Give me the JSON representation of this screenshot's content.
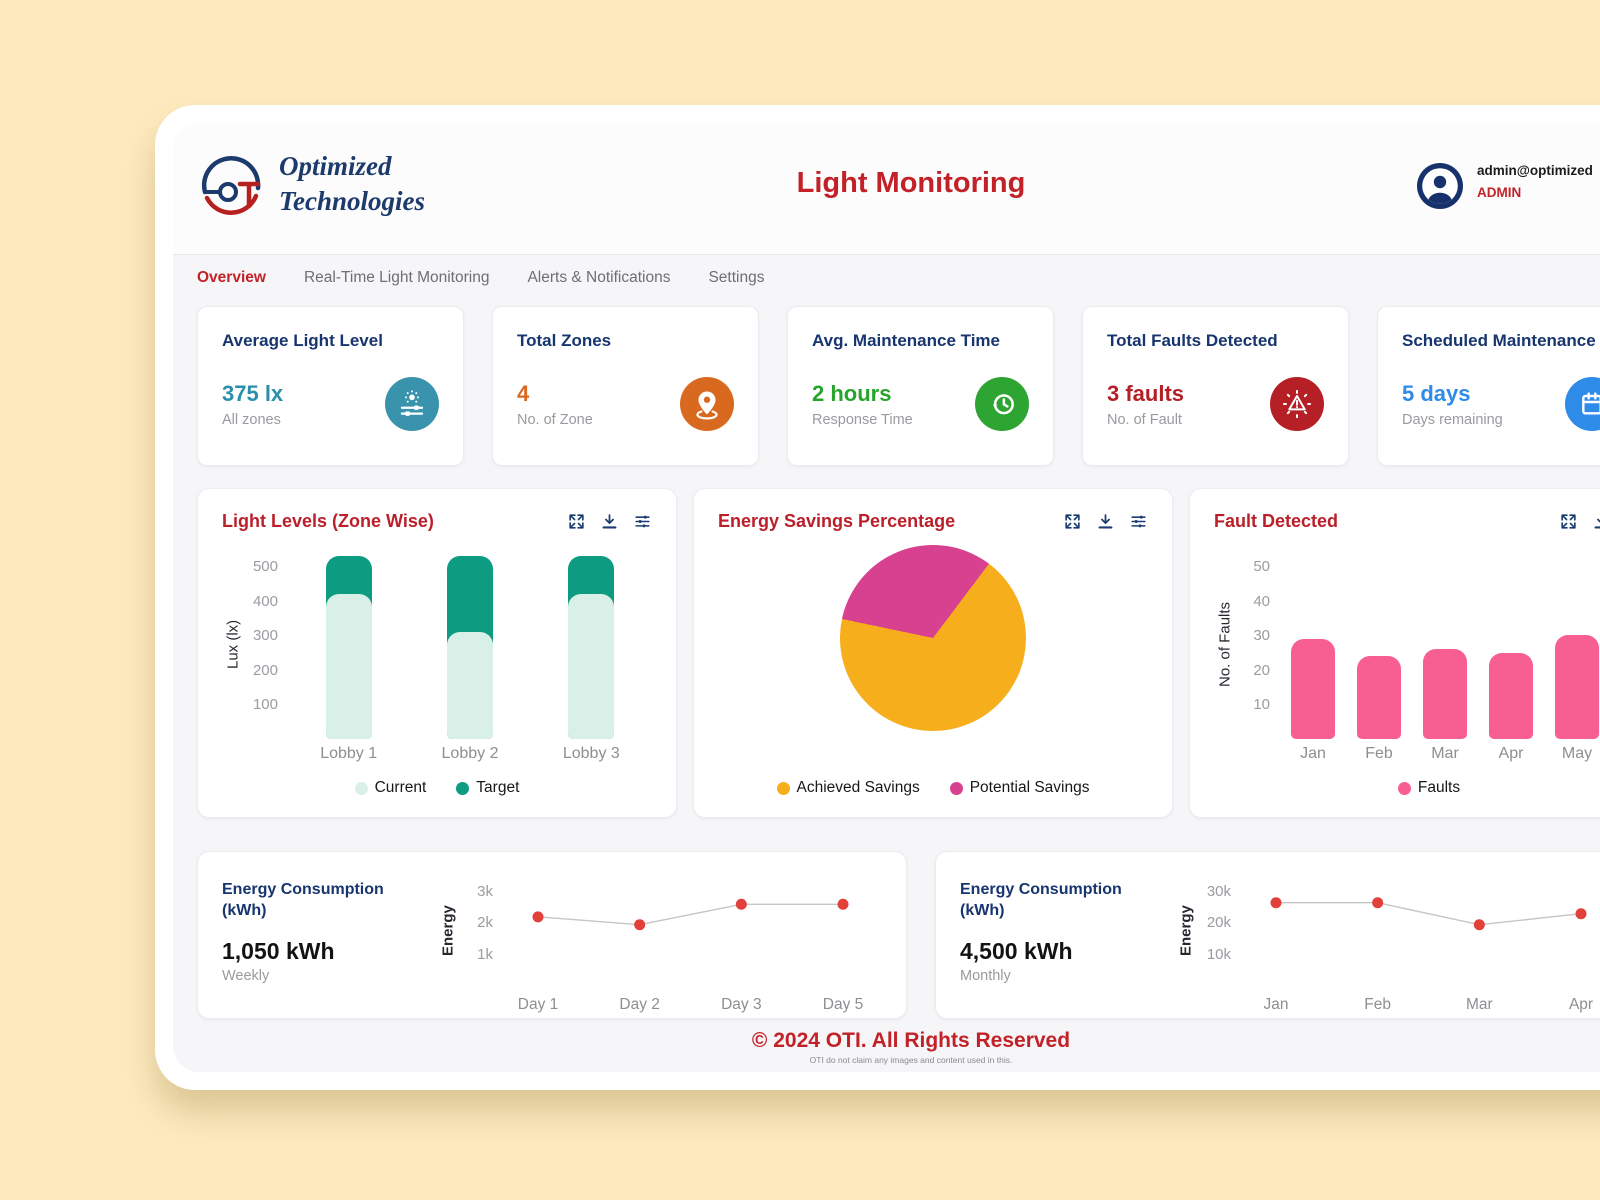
{
  "brand": {
    "line1": "Optimized",
    "line2": "Technologies"
  },
  "header": {
    "title": "Light Monitoring",
    "email": "admin@optimized",
    "role": "ADMIN"
  },
  "nav": [
    {
      "label": "Overview",
      "active": true
    },
    {
      "label": "Real-Time Light Monitoring",
      "active": false
    },
    {
      "label": "Alerts & Notifications",
      "active": false
    },
    {
      "label": "Settings",
      "active": false
    }
  ],
  "kpis": [
    {
      "title": "Average Light Level",
      "value": "375 lx",
      "caption": "All zones",
      "value_color": "#2b8fab",
      "icon": "brightness-sliders-icon",
      "icon_bg": "#3a93ad"
    },
    {
      "title": "Total Zones",
      "value": "4",
      "caption": "No. of Zone",
      "value_color": "#d9691f",
      "icon": "location-pin-icon",
      "icon_bg": "#d9691f"
    },
    {
      "title": "Avg. Maintenance Time",
      "value": "2 hours",
      "caption": "Response Time",
      "value_color": "#28a42c",
      "icon": "clock-history-icon",
      "icon_bg": "#2ea432"
    },
    {
      "title": "Total Faults Detected",
      "value": "3 faults",
      "caption": "No. of Fault",
      "value_color": "#b42025",
      "icon": "alert-triangle-icon",
      "icon_bg": "#b42025"
    },
    {
      "title": "Scheduled Maintenance",
      "value": "5 days",
      "caption": "Days remaining",
      "value_color": "#2e8be8",
      "icon": "calendar-icon",
      "icon_bg": "#2e8be8"
    }
  ],
  "panel_actions": [
    "expand-icon",
    "download-icon",
    "sliders-icon"
  ],
  "panels": {
    "light_levels": {
      "title": "Light Levels (Zone Wise)"
    },
    "energy_savings": {
      "title": "Energy Savings Percentage"
    },
    "fault_detected": {
      "title": "Fault Detected"
    }
  },
  "chart_data": [
    {
      "id": "light_levels",
      "type": "bar",
      "title": "Light Levels (Zone Wise)",
      "categories": [
        "Lobby 1",
        "Lobby 2",
        "Lobby 3"
      ],
      "series": [
        {
          "name": "Current",
          "values": [
            420,
            310,
            420
          ],
          "color": "#d9f0e9"
        },
        {
          "name": "Target",
          "values": [
            530,
            530,
            530
          ],
          "color": "#0d9c82"
        }
      ],
      "ylabel": "Lux (lx)",
      "yticks": [
        100,
        200,
        300,
        400,
        500
      ],
      "ylim": [
        0,
        550
      ],
      "grid": false,
      "legend_position": "bottom"
    },
    {
      "id": "energy_savings",
      "type": "pie",
      "title": "Energy Savings Percentage",
      "slices": [
        {
          "label": "Achieved Savings",
          "value": 68,
          "color": "#f6ae1d"
        },
        {
          "label": "Potential Savings",
          "value": 32,
          "color": "#d8418f"
        }
      ],
      "legend_position": "bottom"
    },
    {
      "id": "fault_detected",
      "type": "bar",
      "title": "Fault Detected",
      "categories": [
        "Jan",
        "Feb",
        "Mar",
        "Apr",
        "May"
      ],
      "series": [
        {
          "name": "Faults",
          "values": [
            29,
            24,
            26,
            25,
            30
          ],
          "color": "#f75e92"
        }
      ],
      "ylabel": "No. of Faults",
      "yticks": [
        10,
        20,
        30,
        40,
        50
      ],
      "ylim": [
        0,
        55
      ],
      "grid": false,
      "legend_position": "bottom"
    },
    {
      "id": "energy_weekly",
      "type": "line",
      "title": "Energy Consumption (kWh)",
      "summary_value": "1,050 kWh",
      "summary_period": "Weekly",
      "x": [
        "Day 1",
        "Day 2",
        "Day 3",
        "Day 5"
      ],
      "values": [
        2200,
        1950,
        2600,
        2600
      ],
      "ylabel": "Energy",
      "yticks": [
        1000,
        2000,
        3000
      ],
      "ytick_labels": [
        "1k",
        "2k",
        "3k"
      ],
      "ylim": [
        0,
        3500
      ],
      "point_color": "#e2413b",
      "line_color": "#c6c6c6"
    },
    {
      "id": "energy_monthly",
      "type": "line",
      "title": "Energy Consumption (kWh)",
      "summary_value": "4,500 kWh",
      "summary_period": "Monthly",
      "x": [
        "Jan",
        "Feb",
        "Mar",
        "Apr"
      ],
      "values": [
        26500,
        26500,
        19500,
        23000
      ],
      "ylabel": "Energy",
      "yticks": [
        10000,
        20000,
        30000
      ],
      "ytick_labels": [
        "10k",
        "20k",
        "30k"
      ],
      "ylim": [
        0,
        35000
      ],
      "point_color": "#e2413b",
      "line_color": "#c6c6c6"
    }
  ],
  "footer": {
    "copyright": "© 2024 OTI. All Rights Reserved",
    "disclaimer": "OTI do not claim any images and content used in this."
  }
}
